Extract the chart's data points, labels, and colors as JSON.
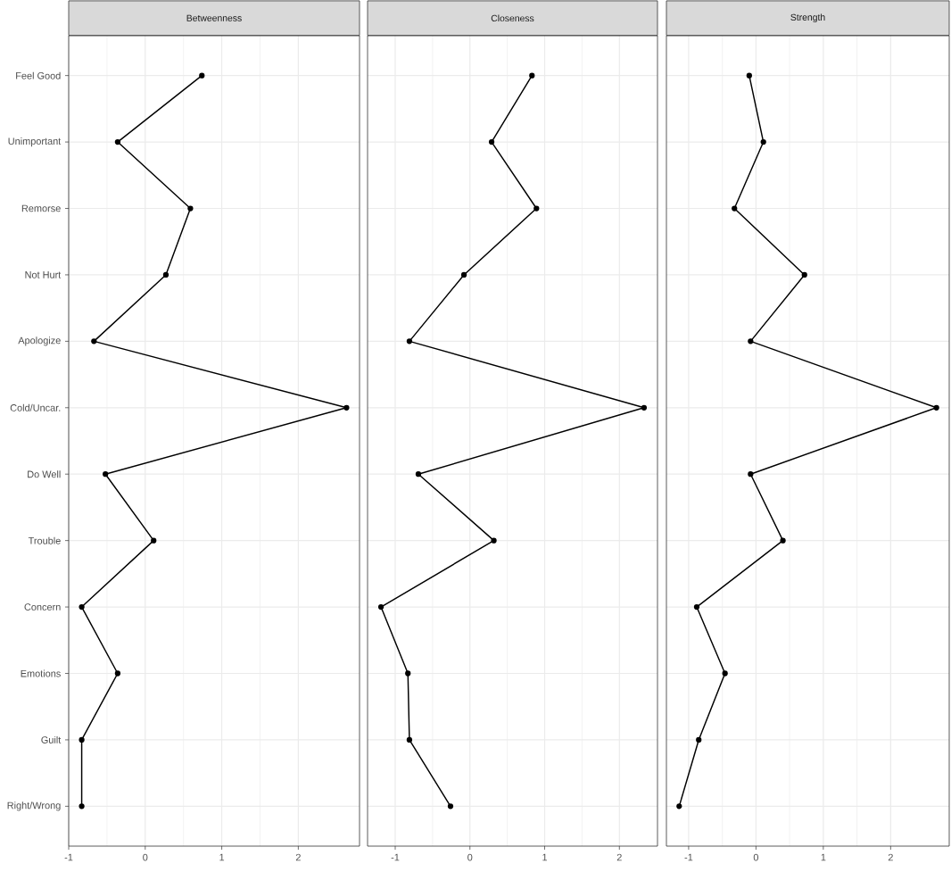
{
  "chart_data": [
    {
      "type": "line",
      "title": "Betweenness",
      "orientation": "horizontal",
      "categories": [
        "Feel Good",
        "Unimportant",
        "Remorse",
        "Not Hurt",
        "Apologize",
        "Cold/Uncar.",
        "Do Well",
        "Trouble",
        "Concern",
        "Emotions",
        "Guilt",
        "Right/Wrong"
      ],
      "values": [
        0.74,
        -0.36,
        0.59,
        0.27,
        -0.67,
        2.63,
        -0.52,
        0.11,
        -0.83,
        -0.36,
        -0.83,
        -0.83
      ],
      "color": "#000000",
      "marker": "circle",
      "grid": true,
      "xlim": [
        -1.0,
        2.8
      ],
      "xticks": [
        -1,
        0,
        1,
        2
      ]
    },
    {
      "type": "line",
      "title": "Closeness",
      "orientation": "horizontal",
      "categories": [
        null,
        null,
        null,
        null,
        null,
        null,
        null,
        null,
        null,
        null,
        null,
        null
      ],
      "values": [
        0.83,
        0.29,
        0.89,
        -0.08,
        -0.81,
        2.33,
        -0.69,
        0.32,
        -1.19,
        -0.83,
        -0.81,
        -0.26
      ],
      "color": "#000000",
      "marker": "circle",
      "grid": true,
      "xlim": [
        -1.37,
        2.51
      ],
      "xticks": [
        -1,
        0,
        1,
        2
      ],
      "tick_labels": "x"
    },
    {
      "type": "line",
      "title": "Strength",
      "orientation": "horizontal",
      "categories": [
        null,
        null,
        null,
        null,
        null,
        null,
        null,
        null,
        null,
        null,
        null,
        null
      ],
      "values": [
        -0.1,
        0.11,
        -0.32,
        0.72,
        -0.08,
        2.68,
        -0.08,
        0.4,
        -0.88,
        -0.46,
        -0.85,
        -1.14
      ],
      "color": "#000000",
      "marker": "circle",
      "grid": true,
      "xlim": [
        -1.33,
        2.87
      ],
      "xticks": [
        -1,
        0,
        1,
        2
      ],
      "tick_labels": "x"
    }
  ]
}
